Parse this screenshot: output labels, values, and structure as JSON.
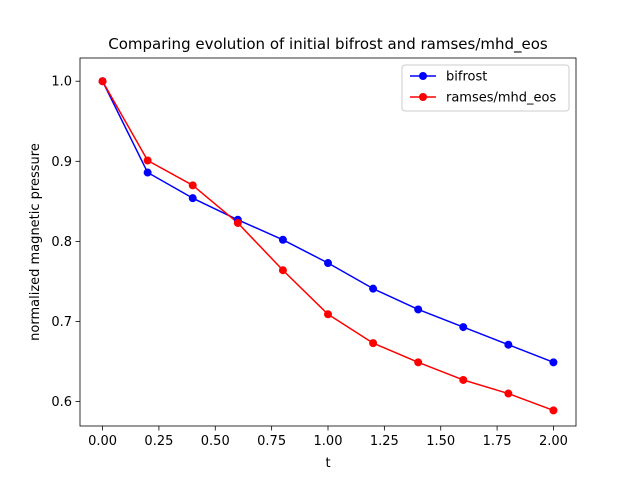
{
  "chart_data": {
    "type": "line",
    "title": "Comparing evolution of initial bifrost and ramses/mhd_eos",
    "xlabel": "t",
    "ylabel": "normalized magnetic pressure",
    "xlim": [
      -0.1,
      2.1
    ],
    "ylim": [
      0.5695,
      1.029
    ],
    "x_ticks": [
      0.0,
      0.25,
      0.5,
      0.75,
      1.0,
      1.25,
      1.5,
      1.75,
      2.0
    ],
    "x_tick_labels": [
      "0.00",
      "0.25",
      "0.50",
      "0.75",
      "1.00",
      "1.25",
      "1.50",
      "1.75",
      "2.00"
    ],
    "y_ticks": [
      0.6,
      0.7,
      0.8,
      0.9,
      1.0
    ],
    "y_tick_labels": [
      "0.6",
      "0.7",
      "0.8",
      "0.9",
      "1.0"
    ],
    "grid": false,
    "legend_position": "top-right",
    "x": [
      0.0,
      0.2,
      0.4,
      0.6,
      0.8,
      1.0,
      1.2,
      1.4,
      1.6,
      1.8,
      2.0
    ],
    "series": [
      {
        "name": "bifrost",
        "color": "#0000ff",
        "marker": "circle",
        "values": [
          1.0,
          0.886,
          0.854,
          0.827,
          0.802,
          0.773,
          0.741,
          0.715,
          0.693,
          0.671,
          0.649
        ]
      },
      {
        "name": "ramses/mhd_eos",
        "color": "#ff0000",
        "marker": "circle",
        "values": [
          1.0,
          0.901,
          0.87,
          0.823,
          0.764,
          0.709,
          0.673,
          0.649,
          0.627,
          0.61,
          0.589
        ]
      }
    ]
  }
}
